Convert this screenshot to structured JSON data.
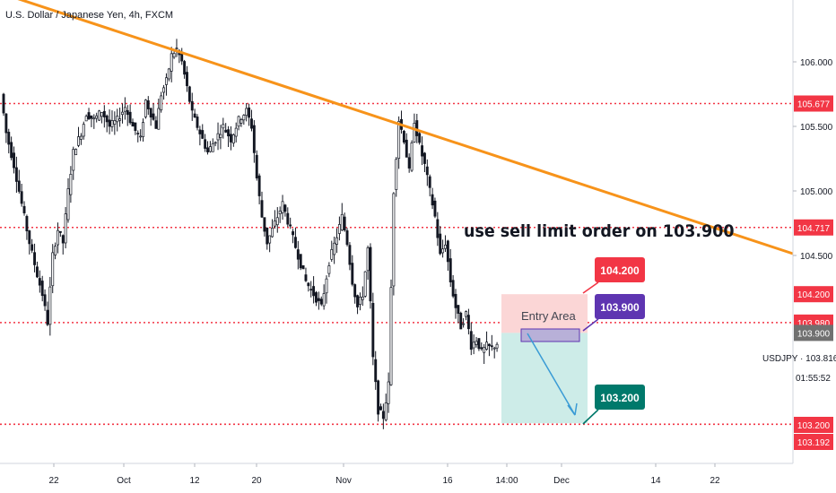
{
  "header": {
    "symbol_title": "U.S. Dollar / Japanese Yen, 4h, FXCM"
  },
  "annotation": {
    "text": "use sell limit order on 103.900"
  },
  "entry": {
    "label": "Entry Area"
  },
  "callouts": {
    "stop": {
      "label": "104.200",
      "color": "#f23645"
    },
    "entry": {
      "label": "103.900",
      "color": "#5e35b1"
    },
    "target": {
      "label": "103.200",
      "color": "#00796b"
    }
  },
  "price_tags": [
    {
      "label": "105.677",
      "value": 105.677,
      "bg": "#f23645"
    },
    {
      "label": "104.717",
      "value": 104.717,
      "bg": "#f23645"
    },
    {
      "label": "104.200",
      "value": 104.2,
      "bg": "#f23645"
    },
    {
      "label": "103.980",
      "value": 103.98,
      "bg": "#f23645"
    },
    {
      "label": "103.900",
      "value": 103.9,
      "bg": "#707070"
    },
    {
      "label": "103.200",
      "value": 103.2,
      "bg": "#f23645"
    },
    {
      "label": "103.192",
      "value": 103.192,
      "bg": "#f23645"
    }
  ],
  "symbol_info": {
    "label": "USDJPY",
    "value": "103.816",
    "countdown": "01:55:52"
  },
  "colors": {
    "candle": "#131722",
    "level_line": "#f23645",
    "trend_line": "#f7931a",
    "stop_zone": "#fbd6d6",
    "profit_zone": "#cdece8",
    "entry_box": "#b8b0d8",
    "arrow": "#3a9bd5"
  },
  "chart_data": {
    "type": "candlestick",
    "y_axis": {
      "ticks": [
        "106.000",
        "105.500",
        "105.000",
        "104.500"
      ]
    },
    "x_axis": {
      "ticks": [
        "22",
        "Oct",
        "12",
        "20",
        "Nov",
        "16",
        "14:00",
        "Dec",
        "14",
        "22"
      ]
    },
    "horizontal_levels": [
      105.677,
      104.717,
      103.98,
      103.192
    ],
    "trend_line": {
      "from": [
        "Sep 15",
        106.6
      ],
      "to": [
        "Dec 27",
        104.5
      ]
    },
    "price_path": [
      [
        105.75,
        0
      ],
      [
        105.45,
        2
      ],
      [
        105.2,
        5
      ],
      [
        104.9,
        8
      ],
      [
        104.6,
        11
      ],
      [
        104.35,
        14
      ],
      [
        104.2,
        16
      ],
      [
        103.98,
        18
      ],
      [
        104.5,
        20
      ],
      [
        104.7,
        22
      ],
      [
        104.6,
        24
      ],
      [
        105.0,
        26
      ],
      [
        105.3,
        28
      ],
      [
        105.45,
        31
      ],
      [
        105.6,
        33
      ],
      [
        105.55,
        36
      ],
      [
        105.62,
        39
      ],
      [
        105.5,
        42
      ],
      [
        105.55,
        45
      ],
      [
        105.65,
        48
      ],
      [
        105.5,
        51
      ],
      [
        105.4,
        54
      ],
      [
        105.7,
        56
      ],
      [
        105.6,
        58
      ],
      [
        105.5,
        60
      ],
      [
        105.75,
        62
      ],
      [
        105.85,
        64
      ],
      [
        106.05,
        66
      ],
      [
        106.1,
        68
      ],
      [
        106.0,
        70
      ],
      [
        105.8,
        72
      ],
      [
        105.6,
        74
      ],
      [
        105.45,
        77
      ],
      [
        105.3,
        80
      ],
      [
        105.4,
        83
      ],
      [
        105.5,
        86
      ],
      [
        105.4,
        89
      ],
      [
        105.55,
        92
      ],
      [
        105.62,
        95
      ],
      [
        105.5,
        97
      ],
      [
        105.1,
        99
      ],
      [
        104.8,
        101
      ],
      [
        104.6,
        103
      ],
      [
        104.75,
        106
      ],
      [
        104.9,
        109
      ],
      [
        104.7,
        112
      ],
      [
        104.5,
        115
      ],
      [
        104.3,
        118
      ],
      [
        104.2,
        121
      ],
      [
        104.1,
        124
      ],
      [
        104.45,
        127
      ],
      [
        104.65,
        130
      ],
      [
        104.8,
        132
      ],
      [
        104.6,
        134
      ],
      [
        104.3,
        136
      ],
      [
        104.1,
        138
      ],
      [
        104.2,
        140
      ],
      [
        104.55,
        142
      ],
      [
        103.7,
        144
      ],
      [
        103.3,
        146
      ],
      [
        103.25,
        148
      ],
      [
        103.5,
        150
      ],
      [
        105.0,
        152
      ],
      [
        105.55,
        154
      ],
      [
        105.4,
        156
      ],
      [
        105.15,
        158
      ],
      [
        105.55,
        160
      ],
      [
        105.35,
        162
      ],
      [
        105.2,
        164
      ],
      [
        105.0,
        166
      ],
      [
        104.8,
        168
      ],
      [
        104.5,
        170
      ],
      [
        104.6,
        172
      ],
      [
        104.3,
        174
      ],
      [
        104.1,
        176
      ],
      [
        103.95,
        178
      ],
      [
        104.05,
        180
      ],
      [
        103.8,
        182
      ],
      [
        103.85,
        184
      ],
      [
        103.75,
        186
      ],
      [
        103.8,
        188
      ],
      [
        103.78,
        190
      ],
      [
        103.82,
        192
      ]
    ],
    "trade_plan": {
      "stop": 104.2,
      "entry": 103.9,
      "target": 103.2,
      "last_price": 103.816
    }
  }
}
